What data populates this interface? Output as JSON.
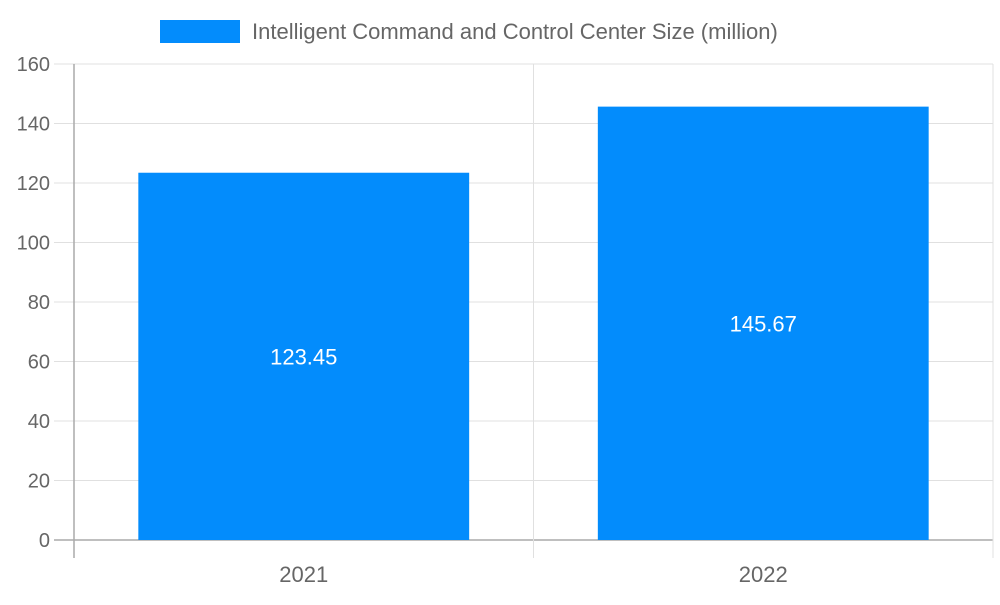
{
  "chart_data": {
    "type": "bar",
    "categories": [
      "2021",
      "2022"
    ],
    "series": [
      {
        "name": "Intelligent Command and Control Center Size (million)",
        "values": [
          123.45,
          145.67
        ],
        "color": "#038cfc"
      }
    ],
    "data_labels": [
      "123.45",
      "145.67"
    ],
    "y_ticks": [
      "0",
      "20",
      "40",
      "60",
      "80",
      "100",
      "120",
      "140",
      "160"
    ],
    "ylim": [
      0,
      160
    ],
    "grid": true,
    "legend_position": "top"
  }
}
